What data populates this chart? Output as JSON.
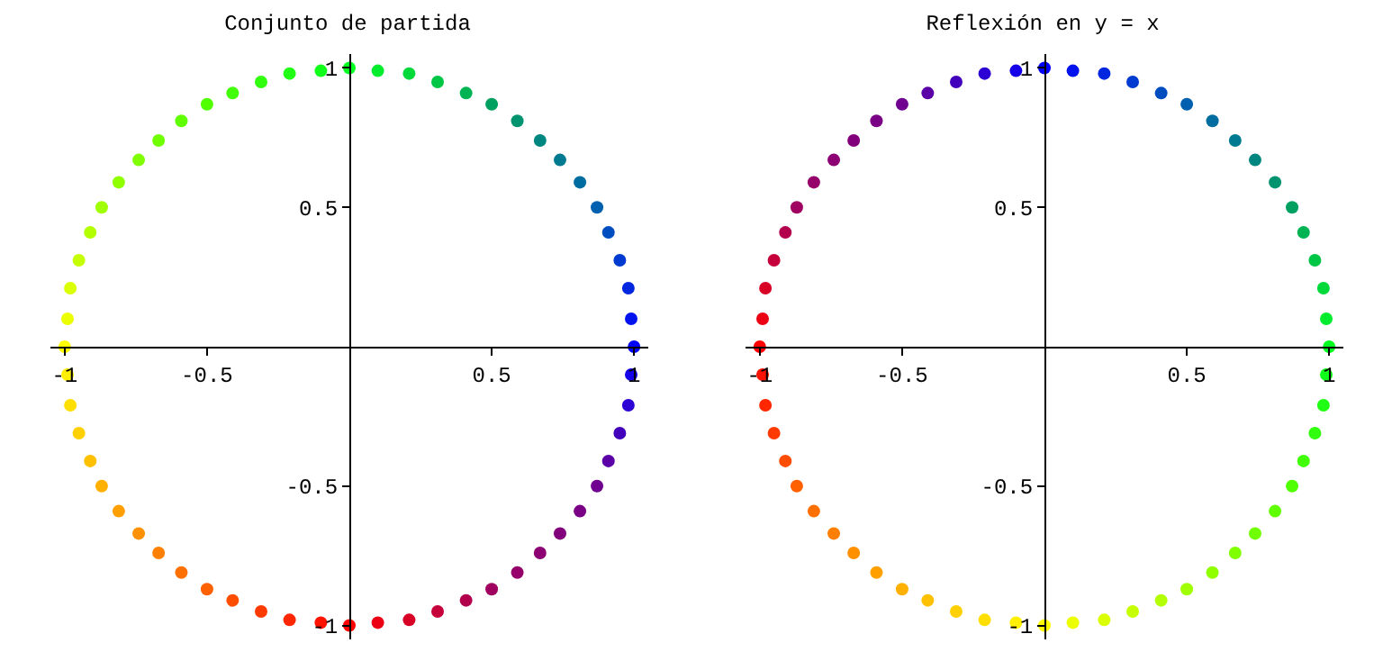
{
  "chart_data": [
    {
      "type": "scatter",
      "title": "Conjunto de partida",
      "marker": "circle",
      "grid": false,
      "xlim": [
        -1.05,
        1.05
      ],
      "ylim": [
        -1.05,
        1.05
      ],
      "xticks": [
        -1,
        -0.5,
        0.5,
        1
      ],
      "yticks": [
        -1,
        -0.5,
        0.5,
        1
      ],
      "x": [
        0,
        0.1,
        0.21,
        0.31,
        0.41,
        0.5,
        0.59,
        0.67,
        0.74,
        0.81,
        0.87,
        0.91,
        0.95,
        0.98,
        0.99,
        1,
        0.99,
        0.98,
        0.95,
        0.91,
        0.87,
        0.81,
        0.74,
        0.67,
        0.59,
        0.5,
        0.41,
        0.31,
        0.21,
        0.1,
        0,
        -0.1,
        -0.21,
        -0.31,
        -0.41,
        -0.5,
        -0.59,
        -0.67,
        -0.74,
        -0.81,
        -0.87,
        -0.91,
        -0.95,
        -0.98,
        -0.99,
        -1,
        -0.99,
        -0.98,
        -0.95,
        -0.91,
        -0.87,
        -0.81,
        -0.74,
        -0.67,
        -0.59,
        -0.5,
        -0.41,
        -0.31,
        -0.21,
        -0.1
      ],
      "values": [
        -1,
        -0.99,
        -0.98,
        -0.95,
        -0.91,
        -0.87,
        -0.81,
        -0.74,
        -0.67,
        -0.59,
        -0.5,
        -0.41,
        -0.31,
        -0.21,
        -0.1,
        0,
        0.1,
        0.21,
        0.31,
        0.41,
        0.5,
        0.59,
        0.67,
        0.74,
        0.81,
        0.87,
        0.91,
        0.95,
        0.98,
        0.99,
        1,
        0.99,
        0.98,
        0.95,
        0.91,
        0.87,
        0.81,
        0.74,
        0.67,
        0.59,
        0.5,
        0.41,
        0.31,
        0.21,
        0.1,
        0,
        -0.1,
        -0.21,
        -0.31,
        -0.41,
        -0.5,
        -0.59,
        -0.67,
        -0.74,
        -0.81,
        -0.87,
        -0.91,
        -0.95,
        -0.98,
        -0.99
      ],
      "colors": [
        "#ff0000",
        "#ec0013",
        "#d90026",
        "#c6003a",
        "#b3004d",
        "#a00060",
        "#96006a",
        "#8d0073",
        "#83007d",
        "#7a0086",
        "#700090",
        "#5a00a6",
        "#4300bc",
        "#2d00d3",
        "#1600e9",
        "#0000ff",
        "#0013ef",
        "#0026df",
        "#003ad0",
        "#004dc0",
        "#0060b0",
        "#006da0",
        "#007a90",
        "#008680",
        "#009370",
        "#00a060",
        "#00b353",
        "#00c646",
        "#00d93a",
        "#00ec2d",
        "#00ff20",
        "#10ff1a",
        "#20ff13",
        "#30ff0d",
        "#40ff06",
        "#50ff00",
        "#60ff00",
        "#70ff00",
        "#80ff00",
        "#90ff00",
        "#a0ff00",
        "#b3ff00",
        "#c6ff00",
        "#d9ff00",
        "#ecff00",
        "#ffff00",
        "#ffef00",
        "#ffdf00",
        "#ffd000",
        "#ffc000",
        "#ffb000",
        "#ffa000",
        "#ff9000",
        "#ff8000",
        "#ff7000",
        "#ff6000",
        "#ff4d00",
        "#ff3a00",
        "#ff2600",
        "#ff1300"
      ]
    },
    {
      "type": "scatter",
      "title": "Reflexión en y = x",
      "marker": "circle",
      "grid": false,
      "xlim": [
        -1.05,
        1.05
      ],
      "ylim": [
        -1.05,
        1.05
      ],
      "xticks": [
        -1,
        -0.5,
        0.5,
        1
      ],
      "yticks": [
        -1,
        -0.5,
        0.5,
        1
      ],
      "x": [
        -1,
        -0.99,
        -0.98,
        -0.95,
        -0.91,
        -0.87,
        -0.81,
        -0.74,
        -0.67,
        -0.59,
        -0.5,
        -0.41,
        -0.31,
        -0.21,
        -0.1,
        0,
        0.1,
        0.21,
        0.31,
        0.41,
        0.5,
        0.59,
        0.67,
        0.74,
        0.81,
        0.87,
        0.91,
        0.95,
        0.98,
        0.99,
        1,
        0.99,
        0.98,
        0.95,
        0.91,
        0.87,
        0.81,
        0.74,
        0.67,
        0.59,
        0.5,
        0.41,
        0.31,
        0.21,
        0.1,
        0,
        -0.1,
        -0.21,
        -0.31,
        -0.41,
        -0.5,
        -0.59,
        -0.67,
        -0.74,
        -0.81,
        -0.87,
        -0.91,
        -0.95,
        -0.98,
        -0.99
      ],
      "values": [
        0,
        0.1,
        0.21,
        0.31,
        0.41,
        0.5,
        0.59,
        0.67,
        0.74,
        0.81,
        0.87,
        0.91,
        0.95,
        0.98,
        0.99,
        1,
        0.99,
        0.98,
        0.95,
        0.91,
        0.87,
        0.81,
        0.74,
        0.67,
        0.59,
        0.5,
        0.41,
        0.31,
        0.21,
        0.1,
        0,
        -0.1,
        -0.21,
        -0.31,
        -0.41,
        -0.5,
        -0.59,
        -0.67,
        -0.74,
        -0.81,
        -0.87,
        -0.91,
        -0.95,
        -0.98,
        -0.99,
        -1,
        -0.99,
        -0.98,
        -0.95,
        -0.91,
        -0.87,
        -0.81,
        -0.74,
        -0.67,
        -0.59,
        -0.5,
        -0.41,
        -0.31,
        -0.21,
        -0.1
      ],
      "colors": [
        "#ff0000",
        "#ec0013",
        "#d90026",
        "#c6003a",
        "#b3004d",
        "#a00060",
        "#96006a",
        "#8d0073",
        "#83007d",
        "#7a0086",
        "#700090",
        "#5a00a6",
        "#4300bc",
        "#2d00d3",
        "#1600e9",
        "#0000ff",
        "#0013ef",
        "#0026df",
        "#003ad0",
        "#004dc0",
        "#0060b0",
        "#006da0",
        "#007a90",
        "#008680",
        "#009370",
        "#00a060",
        "#00b353",
        "#00c646",
        "#00d93a",
        "#00ec2d",
        "#00ff20",
        "#10ff1a",
        "#20ff13",
        "#30ff0d",
        "#40ff06",
        "#50ff00",
        "#60ff00",
        "#70ff00",
        "#80ff00",
        "#90ff00",
        "#a0ff00",
        "#b3ff00",
        "#c6ff00",
        "#d9ff00",
        "#ecff00",
        "#ffff00",
        "#ffef00",
        "#ffdf00",
        "#ffd000",
        "#ffc000",
        "#ffb000",
        "#ffa000",
        "#ff9000",
        "#ff8000",
        "#ff7000",
        "#ff6000",
        "#ff4d00",
        "#ff3a00",
        "#ff2600",
        "#ff1300"
      ]
    }
  ]
}
